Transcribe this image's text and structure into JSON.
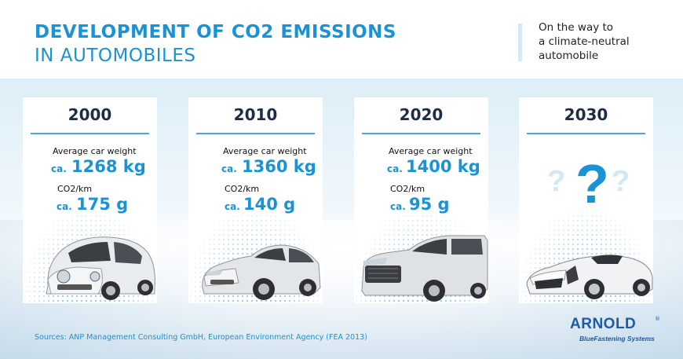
{
  "header": {
    "title_line1": "DEVELOPMENT OF CO2 EMISSIONS",
    "title_line2": "IN AUTOMOBILES",
    "side_note": [
      "On the way to",
      "a climate-neutral",
      "automobile"
    ]
  },
  "cards": [
    {
      "year": "2000",
      "weight_label": "Average car weight",
      "weight_prefix": "ca.",
      "weight_value": "1268 kg",
      "co2_label": "CO2/km",
      "co2_prefix": "ca.",
      "co2_value": "175 g"
    },
    {
      "year": "2010",
      "weight_label": "Average car weight",
      "weight_prefix": "ca.",
      "weight_value": "1360 kg",
      "co2_label": "CO2/km",
      "co2_prefix": "ca.",
      "co2_value": "140 g"
    },
    {
      "year": "2020",
      "weight_label": "Average car weight",
      "weight_prefix": "ca.",
      "weight_value": "1400 kg",
      "co2_label": "CO2/km",
      "co2_prefix": "ca.",
      "co2_value": "95 g"
    },
    {
      "year": "2030",
      "question_big": "?",
      "question_small": "?"
    }
  ],
  "footer": {
    "sources": "Sources: ANP Management Consulting GmbH, European Environment Agency (FEA 2013)",
    "logo_word": "ARNOLD",
    "logo_tagline": "BlueFastening Systems",
    "logo_reg": "®"
  },
  "colors": {
    "accent": "#1a93d6",
    "dark": "#1f2d44",
    "logo": "#1e5aa8"
  },
  "icons": [
    "small-city-car-icon",
    "sedan-car-icon",
    "suv-car-icon",
    "sports-car-icon"
  ]
}
